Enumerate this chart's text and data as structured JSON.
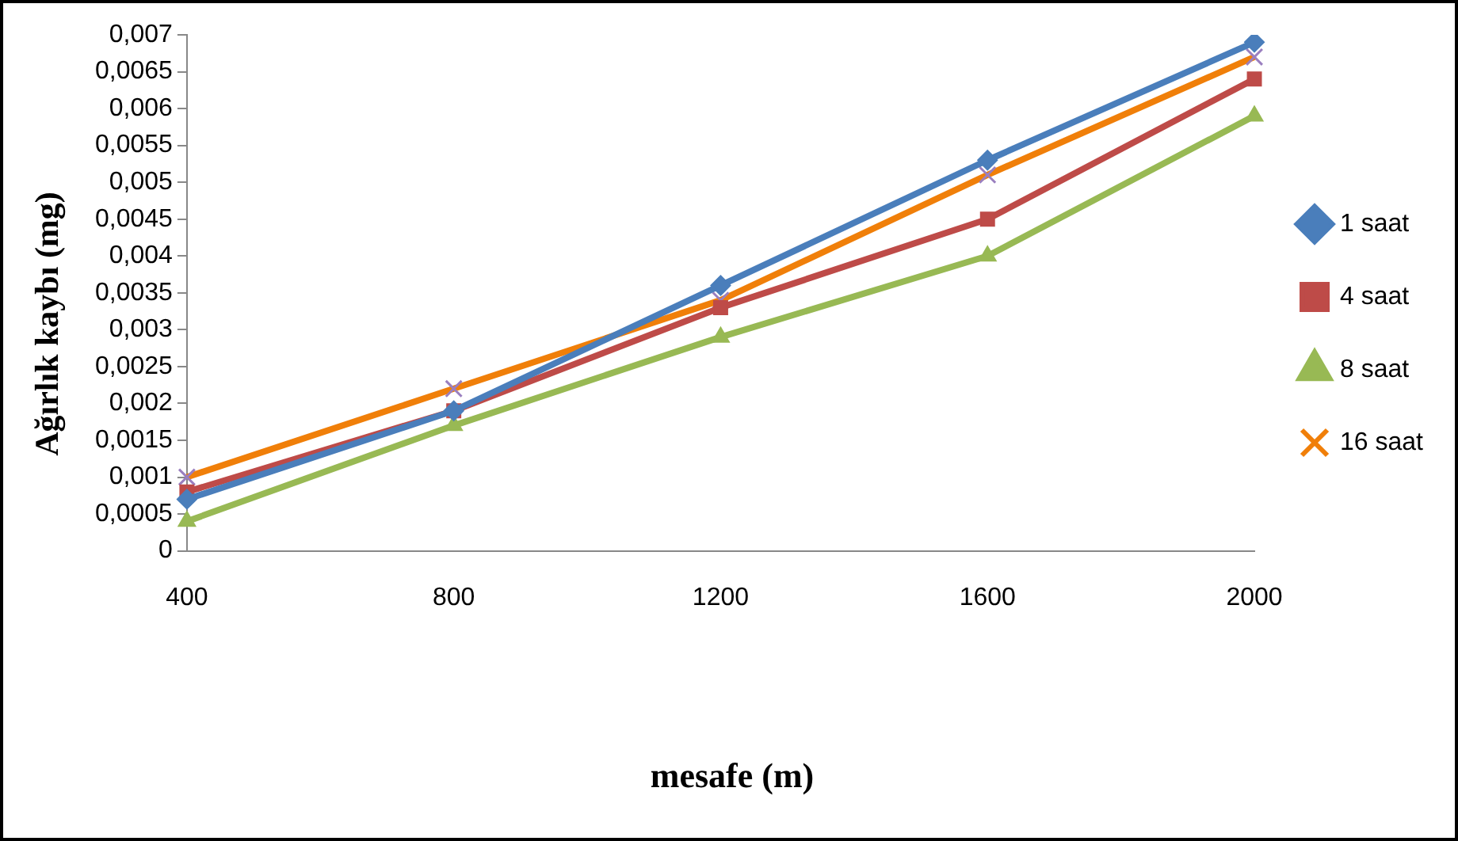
{
  "chart_data": {
    "type": "line",
    "xlabel": "mesafe (m)",
    "ylabel": "Ağırlık kaybı (mg)",
    "categories": [
      "400",
      "800",
      "1200",
      "1600",
      "2000"
    ],
    "series": [
      {
        "name": "1 saat",
        "color": "#4a7ebb",
        "marker": "diamond",
        "values": [
          0.0007,
          0.0019,
          0.0036,
          0.0053,
          0.0069
        ]
      },
      {
        "name": "4 saat",
        "color": "#be4b48",
        "marker": "square",
        "values": [
          0.0008,
          0.0019,
          0.0033,
          0.0045,
          0.0064
        ]
      },
      {
        "name": "8 saat",
        "color": "#98b954",
        "marker": "triangle",
        "values": [
          0.0004,
          0.0017,
          0.0029,
          0.004,
          0.0059
        ]
      },
      {
        "name": "16 saat",
        "color": "#f07f09",
        "marker": "cross",
        "values": [
          0.001,
          0.0022,
          0.0034,
          0.0051,
          0.0067
        ]
      }
    ],
    "ylim": [
      0,
      0.007
    ],
    "yticks": [
      {
        "value": 0,
        "label": "0"
      },
      {
        "value": 0.0005,
        "label": "0,0005"
      },
      {
        "value": 0.001,
        "label": "0,001"
      },
      {
        "value": 0.0015,
        "label": "0,0015"
      },
      {
        "value": 0.002,
        "label": "0,002"
      },
      {
        "value": 0.0025,
        "label": "0,0025"
      },
      {
        "value": 0.003,
        "label": "0,003"
      },
      {
        "value": 0.0035,
        "label": "0,0035"
      },
      {
        "value": 0.004,
        "label": "0,004"
      },
      {
        "value": 0.0045,
        "label": "0,0045"
      },
      {
        "value": 0.005,
        "label": "0,005"
      },
      {
        "value": 0.0055,
        "label": "0,0055"
      },
      {
        "value": 0.006,
        "label": "0,006"
      },
      {
        "value": 0.0065,
        "label": "0,0065"
      },
      {
        "value": 0.007,
        "label": "0,007"
      }
    ],
    "grid": false,
    "legend": "right",
    "line_style": "solid"
  }
}
